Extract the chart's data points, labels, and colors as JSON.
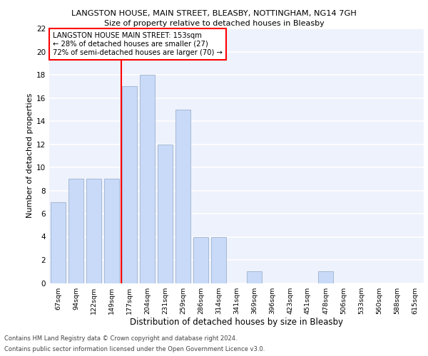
{
  "title1": "LANGSTON HOUSE, MAIN STREET, BLEASBY, NOTTINGHAM, NG14 7GH",
  "title2": "Size of property relative to detached houses in Bleasby",
  "xlabel": "Distribution of detached houses by size in Bleasby",
  "ylabel": "Number of detached properties",
  "categories": [
    "67sqm",
    "94sqm",
    "122sqm",
    "149sqm",
    "177sqm",
    "204sqm",
    "231sqm",
    "259sqm",
    "286sqm",
    "314sqm",
    "341sqm",
    "369sqm",
    "396sqm",
    "423sqm",
    "451sqm",
    "478sqm",
    "506sqm",
    "533sqm",
    "560sqm",
    "588sqm",
    "615sqm"
  ],
  "values": [
    7,
    9,
    9,
    9,
    17,
    18,
    12,
    15,
    4,
    4,
    0,
    1,
    0,
    0,
    0,
    1,
    0,
    0,
    0,
    0,
    0
  ],
  "bar_color": "#c9daf8",
  "bar_edge_color": "#a4b8d4",
  "annotation_line1": "LANGSTON HOUSE MAIN STREET: 153sqm",
  "annotation_line2": "← 28% of detached houses are smaller (27)",
  "annotation_line3": "72% of semi-detached houses are larger (70) →",
  "ylim": [
    0,
    22
  ],
  "yticks": [
    0,
    2,
    4,
    6,
    8,
    10,
    12,
    14,
    16,
    18,
    20,
    22
  ],
  "footer1": "Contains HM Land Registry data © Crown copyright and database right 2024.",
  "footer2": "Contains public sector information licensed under the Open Government Licence v3.0.",
  "bg_color": "#eef2fc",
  "grid_color": "#ffffff",
  "bar_width": 0.85,
  "ref_line_x": 3.55
}
